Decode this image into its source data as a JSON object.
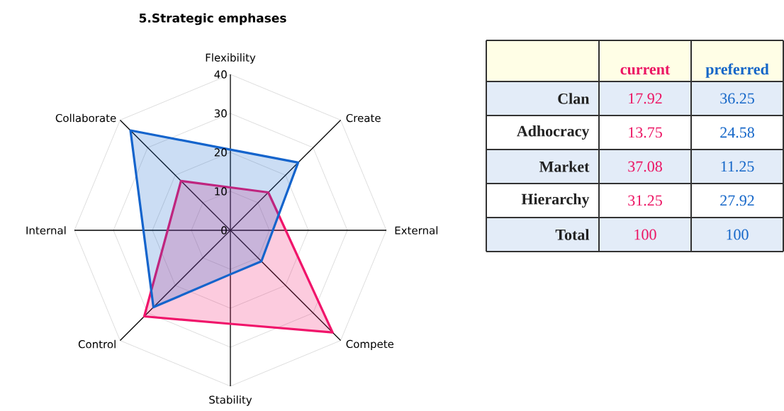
{
  "chart_data": [
    {
      "type": "radar",
      "title": "5.Strategic emphases",
      "categories": [
        "Flexibility",
        "Create",
        "External",
        "Compete",
        "Stability",
        "Control",
        "Internal",
        "Collaborate"
      ],
      "series": [
        {
          "color": "#f0146a",
          "values": [
            11.0,
            13.75,
            14.2,
            37.08,
            24.0,
            31.25,
            16.1,
            17.92
          ]
        },
        {
          "color": "#1464cc",
          "values": [
            20.7,
            24.58,
            10.9,
            11.25,
            11.3,
            27.92,
            22.3,
            36.25
          ]
        }
      ],
      "ylim": [
        0,
        40
      ],
      "yticks": [
        0,
        10,
        20,
        30,
        40
      ],
      "grid": true
    },
    {
      "type": "other",
      "categories": [
        "Clan",
        "Adhocracy",
        "Market",
        "Hierarchy",
        "Total"
      ],
      "series": [
        {
          "name": "current",
          "color": "#ec1463",
          "values": [
            17.92,
            13.75,
            37.08,
            31.25,
            100
          ]
        },
        {
          "name": "preferred",
          "color": "#1466c8",
          "values": [
            36.25,
            24.58,
            11.25,
            27.92,
            100
          ]
        }
      ],
      "data_labels": true
    }
  ]
}
